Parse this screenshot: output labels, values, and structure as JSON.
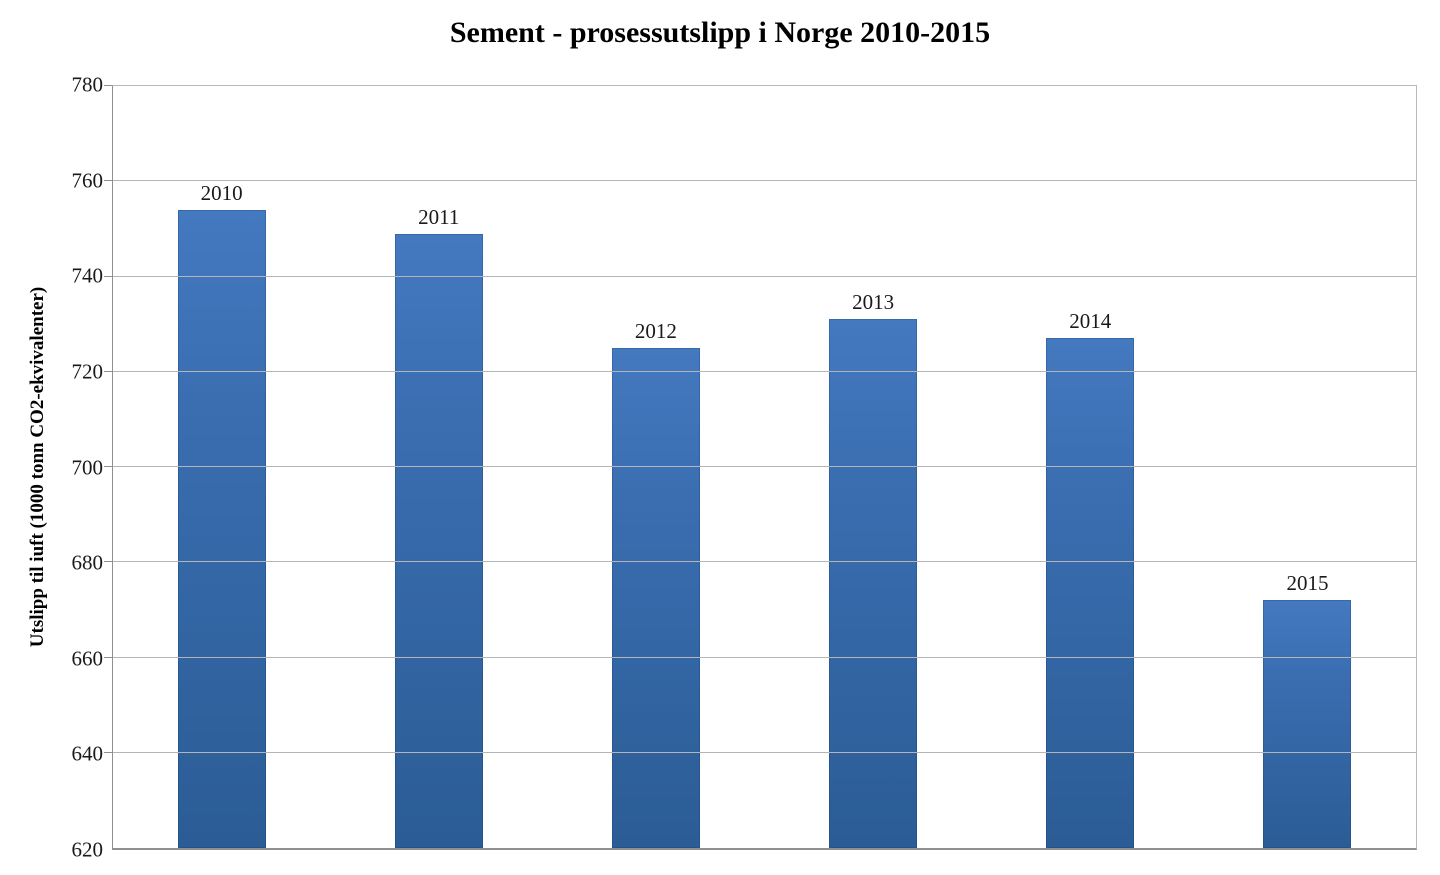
{
  "chart_data": {
    "type": "bar",
    "title": "Sement - prosessutslipp i Norge 2010-2015",
    "xlabel": "",
    "ylabel": "Utslipp til iuft (1000 tonn CO2-ekvivalenter)",
    "categories": [
      "2010",
      "2011",
      "2012",
      "2013",
      "2014",
      "2015"
    ],
    "values": [
      754,
      749,
      725,
      731,
      727,
      672
    ],
    "ylim": [
      620,
      780
    ],
    "yticks": [
      620,
      640,
      660,
      680,
      700,
      720,
      740,
      760,
      780
    ],
    "grid": "horizontal",
    "legend_position": "none",
    "colors": {
      "bar_top": "#4479c0",
      "bar_bottom": "#2b5c95",
      "gridline": "#b5b5b5",
      "axis": "#8f8f8f",
      "text": "#1a1a1a",
      "background": "#ffffff"
    }
  }
}
